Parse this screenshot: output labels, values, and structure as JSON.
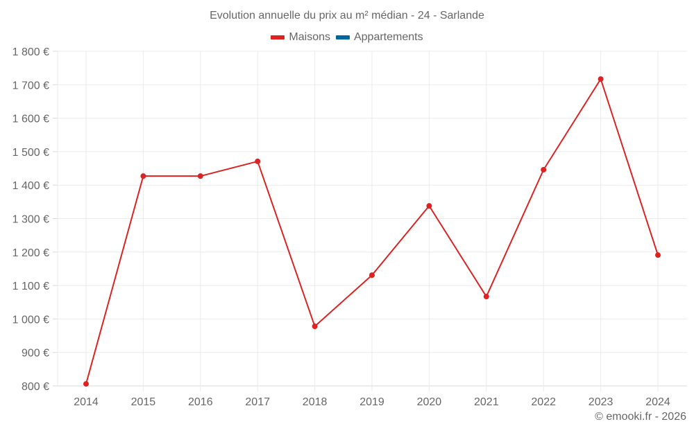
{
  "chart": {
    "title": "Evolution annuelle du prix au m² médian - 24 - Sarlande",
    "credit": "© emooki.fr - 2026",
    "legend": [
      {
        "label": "Maisons",
        "color": "#dd2222"
      },
      {
        "label": "Appartements",
        "color": "#0066a0"
      }
    ]
  },
  "chart_data": {
    "type": "line",
    "title": "Evolution annuelle du prix au m² médian - 24 - Sarlande",
    "xlabel": "",
    "ylabel": "",
    "categories": [
      "2014",
      "2015",
      "2016",
      "2017",
      "2018",
      "2019",
      "2020",
      "2021",
      "2022",
      "2023",
      "2024"
    ],
    "series": [
      {
        "name": "Maisons",
        "color": "#dd2222",
        "values": [
          806,
          1427,
          1427,
          1471,
          978,
          1131,
          1338,
          1067,
          1446,
          1717,
          1191
        ]
      },
      {
        "name": "Appartements",
        "color": "#0066a0",
        "values": []
      }
    ],
    "ylim": [
      800,
      1800
    ],
    "yticks": [
      "800 €",
      "900 €",
      "1 000 €",
      "1 100 €",
      "1 200 €",
      "1 300 €",
      "1 400 €",
      "1 500 €",
      "1 600 €",
      "1 700 €",
      "1 800 €"
    ],
    "grid": true,
    "legend_position": "top"
  }
}
